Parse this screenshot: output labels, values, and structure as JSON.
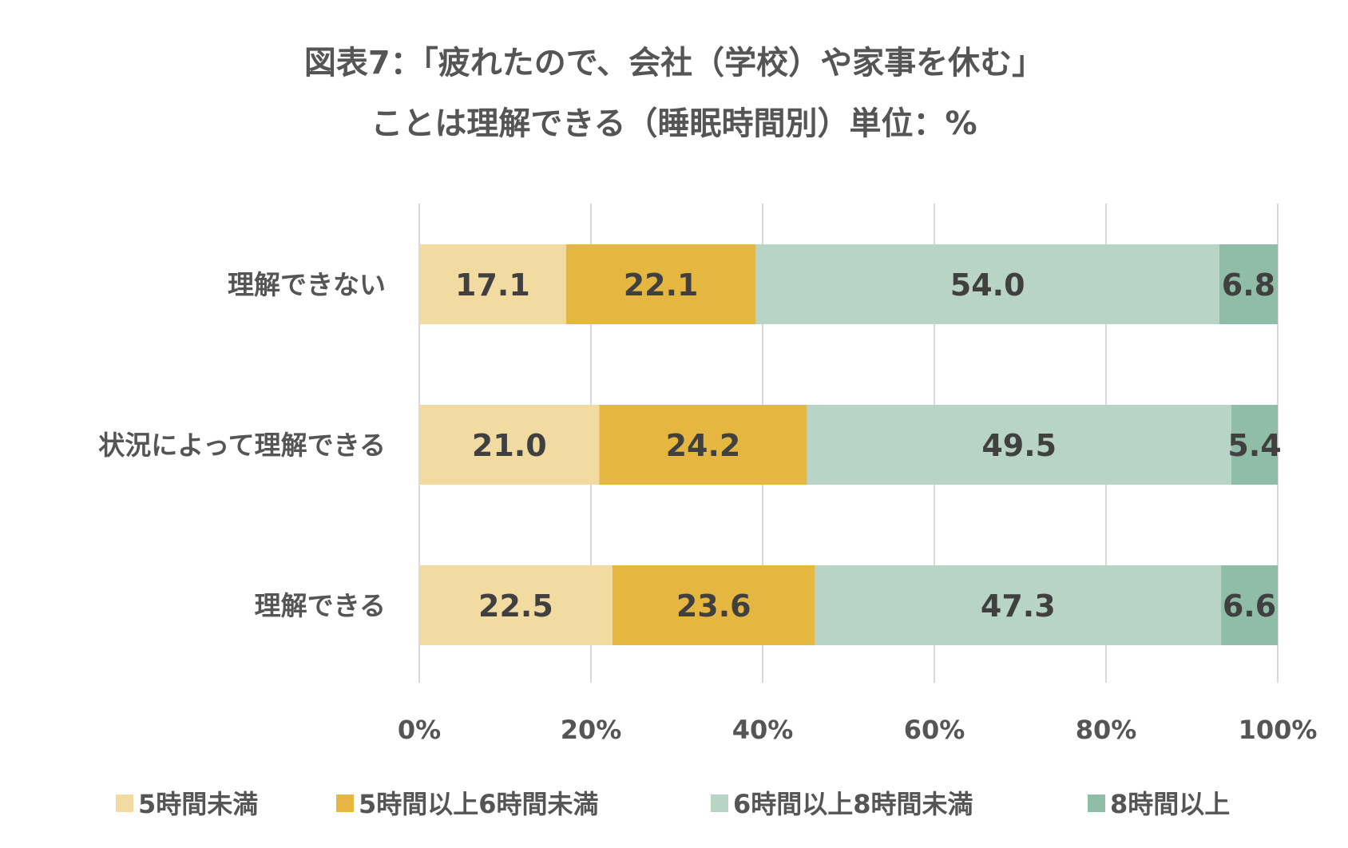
{
  "chart_data": {
    "type": "bar",
    "orientation": "horizontal",
    "stacked": "percent",
    "title": "図表7：「疲れたので、会社（学校）や家事を休む」",
    "subtitle": "ことは理解できる（睡眠時間別）単位：%",
    "categories": [
      "理解できない",
      "状況によって理解できる",
      "理解できる"
    ],
    "series": [
      {
        "name": "5時間未満",
        "color": "#f2dba0",
        "values": [
          17.1,
          21.0,
          22.5
        ]
      },
      {
        "name": "5時間以上6時間未満",
        "color": "#e5b740",
        "values": [
          22.1,
          24.2,
          23.6
        ]
      },
      {
        "name": "6時間以上8時間未満",
        "color": "#b7d4c6",
        "values": [
          54.0,
          49.5,
          47.3
        ]
      },
      {
        "name": "8時間以上",
        "color": "#90bda8",
        "values": [
          6.8,
          5.4,
          6.6
        ]
      }
    ],
    "value_labels": [
      [
        "17.1",
        "22.1",
        "54.0",
        "6.8"
      ],
      [
        "21.0",
        "24.2",
        "49.5",
        "5.4"
      ],
      [
        "22.5",
        "23.6",
        "47.3",
        "6.6"
      ]
    ],
    "x_ticks": [
      "0%",
      "20%",
      "40%",
      "60%",
      "80%",
      "100%"
    ],
    "xlim": [
      0,
      100
    ],
    "grid": true,
    "legend_position": "bottom"
  }
}
